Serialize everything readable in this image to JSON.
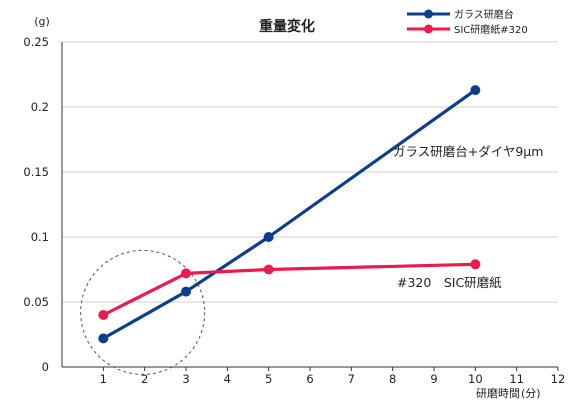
{
  "chart_data": {
    "type": "line",
    "title": "重量変化",
    "xlabel": "研磨時間",
    "x_unit": "(分)",
    "y_unit": "(g)",
    "xlim": [
      0,
      12
    ],
    "ylim": [
      0,
      0.25
    ],
    "x_ticks": [
      "1",
      "2",
      "3",
      "4",
      "5",
      "6",
      "7",
      "8",
      "9",
      "10",
      "11",
      "12"
    ],
    "y_ticks": [
      "0",
      "0.05",
      "0.1",
      "0.15",
      "0.2",
      "0.25"
    ],
    "grid": "horizontal",
    "legend_position": "top-right",
    "series": [
      {
        "name": "ガラス研磨台",
        "color": "#0b3d91",
        "x": [
          1,
          3,
          5,
          10
        ],
        "y": [
          0.022,
          0.058,
          0.1,
          0.213
        ]
      },
      {
        "name": "SIC研磨紙#320",
        "color": "#ea1c4d",
        "x": [
          1,
          3,
          5,
          10
        ],
        "y": [
          0.04,
          0.072,
          0.075,
          0.079
        ]
      }
    ],
    "annotations": [
      {
        "text": "ガラス研磨台+ダイヤ9μm",
        "series": 0
      },
      {
        "text": "#320　SIC研磨紙",
        "series": 1
      }
    ],
    "highlight_circle": {
      "center_x": 2,
      "center_y": 0.042,
      "style": "dashed"
    }
  }
}
